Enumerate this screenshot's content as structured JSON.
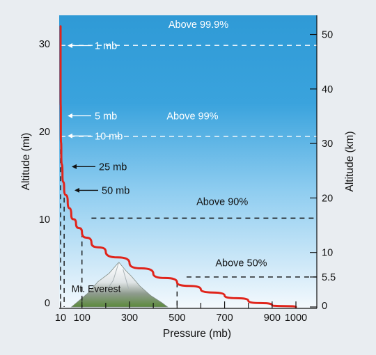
{
  "chart_data": {
    "type": "line",
    "xlabel": "Pressure (mb)",
    "ylabel_left": "Altitude (mi)",
    "ylabel_right": "Altitude (km)",
    "x_ticks": [
      "10",
      "100",
      "300",
      "500",
      "700",
      "900",
      "1000"
    ],
    "x_tick_values": [
      10,
      100,
      300,
      500,
      700,
      900,
      1000
    ],
    "x_minor_ticks": [
      200,
      400,
      600,
      800
    ],
    "xlim": [
      0,
      1000
    ],
    "ylim_mi": [
      0,
      32
    ],
    "y_left_ticks": [
      {
        "label": "0",
        "value": 0
      },
      {
        "label": "10",
        "value": 10
      },
      {
        "label": "20",
        "value": 20
      },
      {
        "label": "30",
        "value": 30
      }
    ],
    "y_right_ticks": [
      {
        "label": "0",
        "km": 0
      },
      {
        "label": "5.5",
        "km": 5.5
      },
      {
        "label": "10",
        "km": 10
      },
      {
        "label": "20",
        "km": 20
      },
      {
        "label": "30",
        "km": 30
      },
      {
        "label": "40",
        "km": 40
      },
      {
        "label": "50",
        "km": 50
      }
    ],
    "series": [
      {
        "color": "#e0241b",
        "points": [
          {
            "x": 10,
            "y": 32
          },
          {
            "x": 10,
            "y": 26
          },
          {
            "x": 11,
            "y": 20
          },
          {
            "x": 13,
            "y": 17.5
          },
          {
            "x": 18,
            "y": 15
          },
          {
            "x": 25,
            "y": 13.5
          },
          {
            "x": 40,
            "y": 12
          },
          {
            "x": 55,
            "y": 10.5
          },
          {
            "x": 75,
            "y": 9.5
          },
          {
            "x": 100,
            "y": 8.5
          },
          {
            "x": 140,
            "y": 7.3
          },
          {
            "x": 200,
            "y": 6.3
          },
          {
            "x": 300,
            "y": 5
          },
          {
            "x": 400,
            "y": 3.8
          },
          {
            "x": 500,
            "y": 2.8
          },
          {
            "x": 600,
            "y": 2
          },
          {
            "x": 700,
            "y": 1.3
          },
          {
            "x": 800,
            "y": 0.7
          },
          {
            "x": 900,
            "y": 0.2
          },
          {
            "x": 1000,
            "y": 0
          }
        ]
      }
    ],
    "drop_lines": [
      {
        "x": 10,
        "y": 18
      },
      {
        "x": 25,
        "y": 13.5
      },
      {
        "x": 100,
        "y": 8.5
      },
      {
        "x": 500,
        "y": 2.8
      }
    ],
    "bands": [
      {
        "label": "Above 99.9%",
        "y_km": 48,
        "x_from": 10,
        "label_x": 590,
        "label_y_km": 51.2,
        "label_color": "#ffffff"
      },
      {
        "label": "Above 99%",
        "y_km": 31.3,
        "x_from": 10,
        "label_x": 565,
        "label_y_km": 34.4,
        "label_color": "#ffffff"
      },
      {
        "label": "Above 90%",
        "y_km": 16.3,
        "x_from": 140,
        "label_x": 690,
        "label_y_km": 18.7,
        "label_color": "#111111"
      },
      {
        "label": "Above 50%",
        "y_km": 5.5,
        "x_from": 540,
        "label_x": 770,
        "label_y_km": 7.5,
        "label_color": "#111111"
      }
    ],
    "annotations": [
      {
        "label": "1 mb",
        "y_mi": 29.8,
        "color": "#ffffff"
      },
      {
        "label": "5 mb",
        "y_mi": 21.8,
        "color": "#ffffff"
      },
      {
        "label": "10 mb",
        "y_mi": 19.5,
        "color": "#ffffff"
      },
      {
        "label": "25 mb",
        "y_mi": 16,
        "color": "#111111"
      },
      {
        "label": "50 mb",
        "y_mi": 13.3,
        "color": "#111111"
      }
    ],
    "landmark": {
      "label": "Mt. Everest",
      "peak_x": 255,
      "peak_y_mi": 5.1
    },
    "colors": {
      "sky_top": "#2f9ad6",
      "sky_bottom": "#f4f9fd",
      "curve": "#e0241b"
    }
  }
}
